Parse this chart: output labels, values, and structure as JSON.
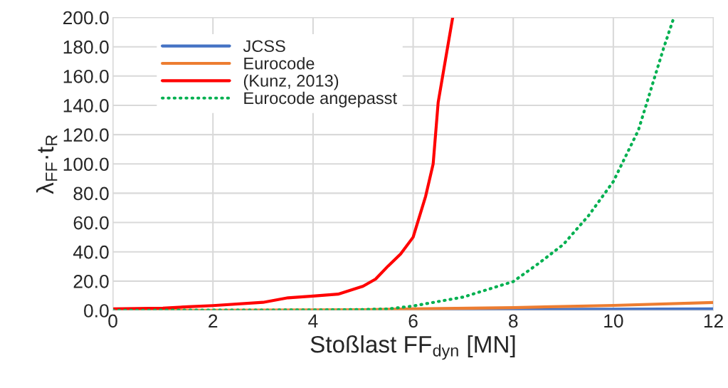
{
  "chart_data": {
    "type": "line",
    "xlabel": "Stoßlast FF$_{dyn}$ [MN]",
    "ylabel": "λ$_{FF}$·t$_{R}$",
    "xlim": [
      0,
      12
    ],
    "xticks": [
      0,
      2,
      4,
      6,
      8,
      10,
      12
    ],
    "ylim": [
      0,
      200
    ],
    "yticks": [
      {
        "value": 0,
        "label": "0.0"
      },
      {
        "value": 20,
        "label": "20.0"
      },
      {
        "value": 40,
        "label": "40.0"
      },
      {
        "value": 60,
        "label": "60.0"
      },
      {
        "value": 80,
        "label": "80.0"
      },
      {
        "value": 100,
        "label": "100.0"
      },
      {
        "value": 120,
        "label": "120.0"
      },
      {
        "value": 140,
        "label": "140.0"
      },
      {
        "value": 160,
        "label": "160.0"
      },
      {
        "value": 180,
        "label": "180.0"
      },
      {
        "value": 200,
        "label": "200.0"
      }
    ],
    "grid": true,
    "legend": "top left",
    "marker": "none",
    "series": [
      {
        "name": "JCSS",
        "color": "#4472c4",
        "line_style": "solid",
        "x": [
          6,
          8,
          10,
          12
        ],
        "values": [
          0.4,
          0.6,
          0.8,
          1.0
        ]
      },
      {
        "name": "Eurocode",
        "color": "#ed7d31",
        "line_style": "solid",
        "x": [
          0,
          2,
          4,
          5,
          6,
          8,
          10,
          12
        ],
        "values": [
          0,
          0.1,
          0.3,
          0.5,
          1.0,
          1.9,
          3.4,
          5.4
        ]
      },
      {
        "name": "(Kunz, 2013)",
        "color": "#ff0000",
        "line_style": "solid",
        "x": [
          0,
          1,
          1.5,
          2,
          3,
          3.5,
          4,
          4.5,
          5,
          5.25,
          5.5,
          5.75,
          6,
          6.25,
          6.4,
          6.5,
          6.6,
          6.79
        ],
        "values": [
          1,
          1.5,
          2.5,
          3.3,
          5.5,
          8.6,
          9.8,
          11.1,
          16.5,
          21.4,
          30.3,
          38.5,
          50,
          78,
          100,
          142,
          162,
          200
        ]
      },
      {
        "name": "Eurocode angepasst",
        "color": "#00b050",
        "line_style": "dotted",
        "x": [
          0,
          2,
          4,
          5,
          5.5,
          6,
          7,
          8,
          8.5,
          9,
          9.5,
          10,
          10.5,
          11,
          11.2
        ],
        "values": [
          0.1,
          0.2,
          0.3,
          0.6,
          1,
          3,
          9.1,
          19.7,
          31.9,
          45,
          64.5,
          88,
          123,
          178.6,
          199
        ]
      }
    ]
  }
}
